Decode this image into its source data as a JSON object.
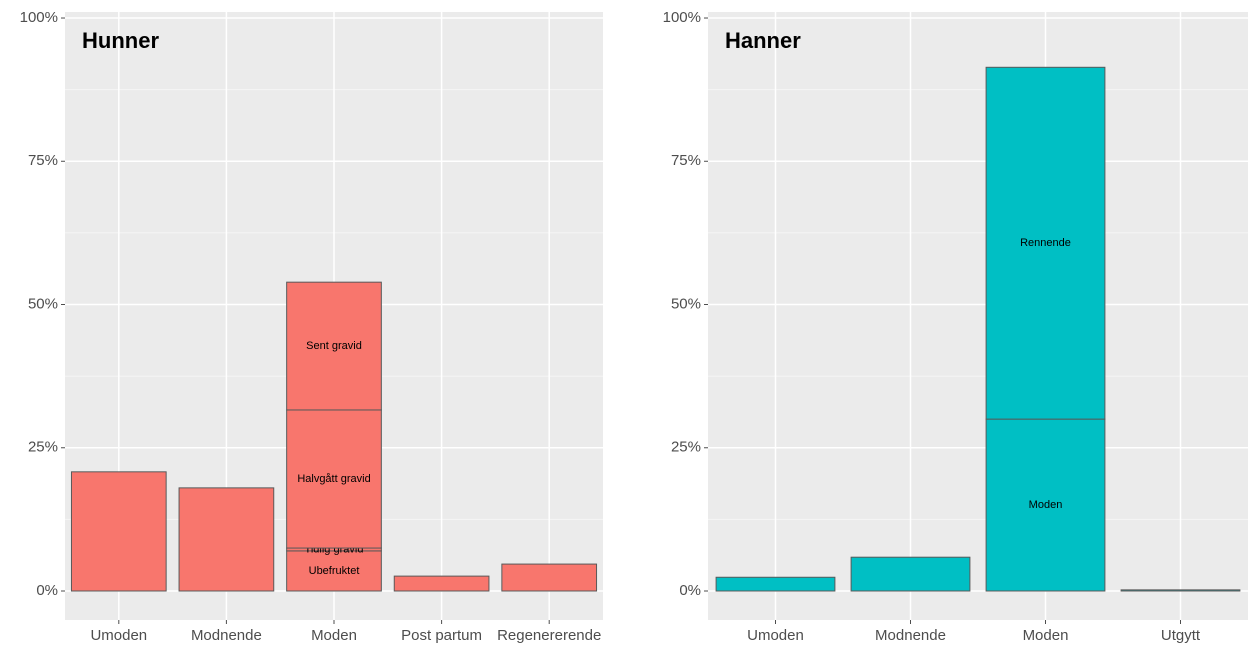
{
  "chart_data": [
    {
      "type": "bar",
      "title": "Hunner",
      "color": "#f8766d",
      "stacked": true,
      "categories": [
        "Umoden",
        "Modnende",
        "Moden",
        "Post partum",
        "Regenererende"
      ],
      "series": [
        {
          "values": [
            20.8,
            18.0,
            null,
            2.6,
            4.7
          ]
        },
        {
          "name": "Ubefruktet",
          "values": [
            null,
            null,
            7.0,
            null,
            null
          ]
        },
        {
          "name": "Tidlig gravid",
          "values": [
            null,
            null,
            0.5,
            null,
            null
          ]
        },
        {
          "name": "Halvgått gravid",
          "values": [
            null,
            null,
            24.1,
            null,
            null
          ]
        },
        {
          "name": "Sent gravid",
          "values": [
            null,
            null,
            22.3,
            null,
            null
          ]
        }
      ],
      "ylim": [
        -5.06,
        101.05
      ],
      "yticks": [
        {
          "value": 0,
          "label": "0%"
        },
        {
          "value": 25,
          "label": "25%"
        },
        {
          "value": 50,
          "label": "50%"
        },
        {
          "value": 75,
          "label": "75%"
        },
        {
          "value": 100,
          "label": "100%"
        }
      ],
      "grid": true
    },
    {
      "type": "bar",
      "title": "Hanner",
      "color": "#00bfc4",
      "stacked": true,
      "categories": [
        "Umoden",
        "Modnende",
        "Moden",
        "Utgytt"
      ],
      "series": [
        {
          "values": [
            2.4,
            5.9,
            null,
            0.2
          ]
        },
        {
          "name": "Moden",
          "values": [
            null,
            null,
            30.0,
            null
          ]
        },
        {
          "name": "Rennende",
          "values": [
            null,
            null,
            61.4,
            null
          ]
        }
      ],
      "ylim": [
        -5.06,
        101.05
      ],
      "yticks": [
        {
          "value": 0,
          "label": "0%"
        },
        {
          "value": 25,
          "label": "25%"
        },
        {
          "value": 50,
          "label": "50%"
        },
        {
          "value": 75,
          "label": "75%"
        },
        {
          "value": 100,
          "label": "100%"
        }
      ],
      "grid": true
    }
  ]
}
